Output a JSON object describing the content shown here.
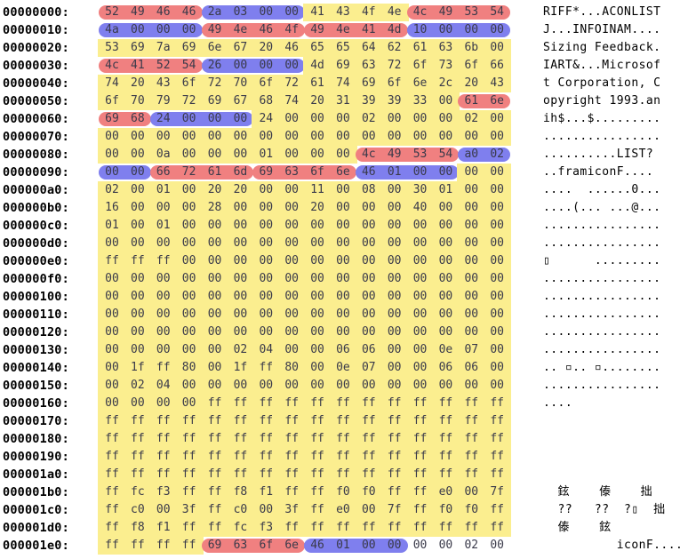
{
  "rows": [
    {
      "offset": "00000000:",
      "bytes": [
        "52",
        "49",
        "46",
        "46",
        "2a",
        "03",
        "00",
        "00",
        "41",
        "43",
        "4f",
        "4e",
        "4c",
        "49",
        "53",
        "54"
      ],
      "ascii": "RIFF*...ACONLIST"
    },
    {
      "offset": "00000010:",
      "bytes": [
        "4a",
        "00",
        "00",
        "00",
        "49",
        "4e",
        "46",
        "4f",
        "49",
        "4e",
        "41",
        "4d",
        "10",
        "00",
        "00",
        "00"
      ],
      "ascii": "J...INFOINAM...."
    },
    {
      "offset": "00000020:",
      "bytes": [
        "53",
        "69",
        "7a",
        "69",
        "6e",
        "67",
        "20",
        "46",
        "65",
        "65",
        "64",
        "62",
        "61",
        "63",
        "6b",
        "00"
      ],
      "ascii": "Sizing Feedback."
    },
    {
      "offset": "00000030:",
      "bytes": [
        "4c",
        "41",
        "52",
        "54",
        "26",
        "00",
        "00",
        "00",
        "4d",
        "69",
        "63",
        "72",
        "6f",
        "73",
        "6f",
        "66"
      ],
      "ascii": "IART&...Microsof"
    },
    {
      "offset": "00000040:",
      "bytes": [
        "74",
        "20",
        "43",
        "6f",
        "72",
        "70",
        "6f",
        "72",
        "61",
        "74",
        "69",
        "6f",
        "6e",
        "2c",
        "20",
        "43"
      ],
      "ascii": "t Corporation, C"
    },
    {
      "offset": "00000050:",
      "bytes": [
        "6f",
        "70",
        "79",
        "72",
        "69",
        "67",
        "68",
        "74",
        "20",
        "31",
        "39",
        "39",
        "33",
        "00",
        "61",
        "6e"
      ],
      "ascii": "opyright 1993.an"
    },
    {
      "offset": "00000060:",
      "bytes": [
        "69",
        "68",
        "24",
        "00",
        "00",
        "00",
        "24",
        "00",
        "00",
        "00",
        "02",
        "00",
        "00",
        "00",
        "02",
        "00"
      ],
      "ascii": "ih$...$........."
    },
    {
      "offset": "00000070:",
      "bytes": [
        "00",
        "00",
        "00",
        "00",
        "00",
        "00",
        "00",
        "00",
        "00",
        "00",
        "00",
        "00",
        "00",
        "00",
        "00",
        "00"
      ],
      "ascii": "................"
    },
    {
      "offset": "00000080:",
      "bytes": [
        "00",
        "00",
        "0a",
        "00",
        "00",
        "00",
        "01",
        "00",
        "00",
        "00",
        "4c",
        "49",
        "53",
        "54",
        "a0",
        "02"
      ],
      "ascii": "..........LIST?"
    },
    {
      "offset": "00000090:",
      "bytes": [
        "00",
        "00",
        "66",
        "72",
        "61",
        "6d",
        "69",
        "63",
        "6f",
        "6e",
        "46",
        "01",
        "00",
        "00",
        "00",
        "00"
      ],
      "ascii": "..framiconF...."
    },
    {
      "offset": "000000a0:",
      "bytes": [
        "02",
        "00",
        "01",
        "00",
        "20",
        "20",
        "00",
        "00",
        "11",
        "00",
        "08",
        "00",
        "30",
        "01",
        "00",
        "00"
      ],
      "ascii": "....  ......0..."
    },
    {
      "offset": "000000b0:",
      "bytes": [
        "16",
        "00",
        "00",
        "00",
        "28",
        "00",
        "00",
        "00",
        "20",
        "00",
        "00",
        "00",
        "40",
        "00",
        "00",
        "00"
      ],
      "ascii": "....(... ...@..."
    },
    {
      "offset": "000000c0:",
      "bytes": [
        "01",
        "00",
        "01",
        "00",
        "00",
        "00",
        "00",
        "00",
        "00",
        "00",
        "00",
        "00",
        "00",
        "00",
        "00",
        "00"
      ],
      "ascii": "................"
    },
    {
      "offset": "000000d0:",
      "bytes": [
        "00",
        "00",
        "00",
        "00",
        "00",
        "00",
        "00",
        "00",
        "00",
        "00",
        "00",
        "00",
        "00",
        "00",
        "00",
        "00"
      ],
      "ascii": "................"
    },
    {
      "offset": "000000e0:",
      "bytes": [
        "ff",
        "ff",
        "ff",
        "00",
        "00",
        "00",
        "00",
        "00",
        "00",
        "00",
        "00",
        "00",
        "00",
        "00",
        "00",
        "00"
      ],
      "ascii": "▯      ........."
    },
    {
      "offset": "000000f0:",
      "bytes": [
        "00",
        "00",
        "00",
        "00",
        "00",
        "00",
        "00",
        "00",
        "00",
        "00",
        "00",
        "00",
        "00",
        "00",
        "00",
        "00"
      ],
      "ascii": "................"
    },
    {
      "offset": "00000100:",
      "bytes": [
        "00",
        "00",
        "00",
        "00",
        "00",
        "00",
        "00",
        "00",
        "00",
        "00",
        "00",
        "00",
        "00",
        "00",
        "00",
        "00"
      ],
      "ascii": "................"
    },
    {
      "offset": "00000110:",
      "bytes": [
        "00",
        "00",
        "00",
        "00",
        "00",
        "00",
        "00",
        "00",
        "00",
        "00",
        "00",
        "00",
        "00",
        "00",
        "00",
        "00"
      ],
      "ascii": "................"
    },
    {
      "offset": "00000120:",
      "bytes": [
        "00",
        "00",
        "00",
        "00",
        "00",
        "00",
        "00",
        "00",
        "00",
        "00",
        "00",
        "00",
        "00",
        "00",
        "00",
        "00"
      ],
      "ascii": "................"
    },
    {
      "offset": "00000130:",
      "bytes": [
        "00",
        "00",
        "00",
        "00",
        "00",
        "02",
        "04",
        "00",
        "00",
        "06",
        "06",
        "00",
        "00",
        "0e",
        "07",
        "00"
      ],
      "ascii": "................"
    },
    {
      "offset": "00000140:",
      "bytes": [
        "00",
        "1f",
        "ff",
        "80",
        "00",
        "1f",
        "ff",
        "80",
        "00",
        "0e",
        "07",
        "00",
        "00",
        "06",
        "06",
        "00"
      ],
      "ascii": ".. ▫.. ▫........"
    },
    {
      "offset": "00000150:",
      "bytes": [
        "00",
        "02",
        "04",
        "00",
        "00",
        "00",
        "00",
        "00",
        "00",
        "00",
        "00",
        "00",
        "00",
        "00",
        "00",
        "00"
      ],
      "ascii": "................"
    },
    {
      "offset": "00000160:",
      "bytes": [
        "00",
        "00",
        "00",
        "00",
        "ff",
        "ff",
        "ff",
        "ff",
        "ff",
        "ff",
        "ff",
        "ff",
        "ff",
        "ff",
        "ff",
        "ff"
      ],
      "ascii": "...."
    },
    {
      "offset": "00000170:",
      "bytes": [
        "ff",
        "ff",
        "ff",
        "ff",
        "ff",
        "ff",
        "ff",
        "ff",
        "ff",
        "ff",
        "ff",
        "ff",
        "ff",
        "ff",
        "ff",
        "ff"
      ],
      "ascii": ""
    },
    {
      "offset": "00000180:",
      "bytes": [
        "ff",
        "ff",
        "ff",
        "ff",
        "ff",
        "ff",
        "ff",
        "ff",
        "ff",
        "ff",
        "ff",
        "ff",
        "ff",
        "ff",
        "ff",
        "ff"
      ],
      "ascii": ""
    },
    {
      "offset": "00000190:",
      "bytes": [
        "ff",
        "ff",
        "ff",
        "ff",
        "ff",
        "ff",
        "ff",
        "ff",
        "ff",
        "ff",
        "ff",
        "ff",
        "ff",
        "ff",
        "ff",
        "ff"
      ],
      "ascii": ""
    },
    {
      "offset": "000001a0:",
      "bytes": [
        "ff",
        "ff",
        "ff",
        "ff",
        "ff",
        "ff",
        "ff",
        "ff",
        "ff",
        "ff",
        "ff",
        "ff",
        "ff",
        "ff",
        "ff",
        "ff"
      ],
      "ascii": ""
    },
    {
      "offset": "000001b0:",
      "bytes": [
        "ff",
        "fc",
        "f3",
        "ff",
        "ff",
        "f8",
        "f1",
        "ff",
        "ff",
        "f0",
        "f0",
        "ff",
        "ff",
        "e0",
        "00",
        "7f"
      ],
      "ascii": "  鉉    傣    拙"
    },
    {
      "offset": "000001c0:",
      "bytes": [
        "ff",
        "c0",
        "00",
        "3f",
        "ff",
        "c0",
        "00",
        "3f",
        "ff",
        "e0",
        "00",
        "7f",
        "ff",
        "f0",
        "f0",
        "ff"
      ],
      "ascii": "  ??   ??  ?▯  拙"
    },
    {
      "offset": "000001d0:",
      "bytes": [
        "ff",
        "f8",
        "f1",
        "ff",
        "ff",
        "fc",
        "f3",
        "ff",
        "ff",
        "ff",
        "ff",
        "ff",
        "ff",
        "ff",
        "ff",
        "ff"
      ],
      "ascii": "  傣    鉉"
    },
    {
      "offset": "000001e0:",
      "bytes": [
        "ff",
        "ff",
        "ff",
        "ff",
        "69",
        "63",
        "6f",
        "6e",
        "46",
        "01",
        "00",
        "00",
        "00",
        "00",
        "02",
        "00"
      ],
      "ascii": "          iconF...."
    }
  ],
  "highlights": [
    {
      "row": 0,
      "from": 0,
      "to": 3,
      "color": "red"
    },
    {
      "row": 0,
      "from": 4,
      "to": 7,
      "color": "blue"
    },
    {
      "row": 0,
      "from": 8,
      "to": 11,
      "color": "yellow"
    },
    {
      "row": 0,
      "from": 12,
      "to": 15,
      "color": "red"
    },
    {
      "row": 1,
      "from": 0,
      "to": 3,
      "color": "blue"
    },
    {
      "row": 1,
      "from": 4,
      "to": 7,
      "color": "red"
    },
    {
      "row": 1,
      "from": 8,
      "to": 11,
      "color": "red"
    },
    {
      "row": 1,
      "from": 12,
      "to": 15,
      "color": "blue"
    },
    {
      "row": 2,
      "from": 0,
      "to": 15,
      "color": "yellow"
    },
    {
      "row": 3,
      "from": 0,
      "to": 3,
      "color": "red"
    },
    {
      "row": 3,
      "from": 4,
      "to": 7,
      "color": "blue"
    },
    {
      "row": 3,
      "from": 8,
      "to": 15,
      "color": "yellow"
    },
    {
      "row": 4,
      "from": 0,
      "to": 15,
      "color": "yellow"
    },
    {
      "row": 5,
      "from": 0,
      "to": 13,
      "color": "yellow"
    },
    {
      "row": 5,
      "from": 14,
      "to": 15,
      "color": "red"
    },
    {
      "row": 6,
      "from": 0,
      "to": 1,
      "color": "red"
    },
    {
      "row": 6,
      "from": 2,
      "to": 5,
      "color": "blue"
    },
    {
      "row": 6,
      "from": 6,
      "to": 15,
      "color": "yellow"
    },
    {
      "row": 7,
      "from": 0,
      "to": 15,
      "color": "yellow"
    },
    {
      "row": 8,
      "from": 0,
      "to": 9,
      "color": "yellow"
    },
    {
      "row": 8,
      "from": 10,
      "to": 13,
      "color": "red"
    },
    {
      "row": 8,
      "from": 14,
      "to": 15,
      "color": "blue"
    },
    {
      "row": 9,
      "from": 0,
      "to": 1,
      "color": "blue"
    },
    {
      "row": 9,
      "from": 2,
      "to": 5,
      "color": "red"
    },
    {
      "row": 9,
      "from": 6,
      "to": 9,
      "color": "red"
    },
    {
      "row": 9,
      "from": 10,
      "to": 13,
      "color": "blue"
    },
    {
      "row": 9,
      "from": 14,
      "to": 15,
      "color": "yellow"
    },
    {
      "row": 10,
      "from": 0,
      "to": 15,
      "color": "yellow"
    },
    {
      "row": 11,
      "from": 0,
      "to": 15,
      "color": "yellow"
    },
    {
      "row": 12,
      "from": 0,
      "to": 15,
      "color": "yellow"
    },
    {
      "row": 13,
      "from": 0,
      "to": 15,
      "color": "yellow"
    },
    {
      "row": 14,
      "from": 0,
      "to": 15,
      "color": "yellow"
    },
    {
      "row": 15,
      "from": 0,
      "to": 15,
      "color": "yellow"
    },
    {
      "row": 16,
      "from": 0,
      "to": 15,
      "color": "yellow"
    },
    {
      "row": 17,
      "from": 0,
      "to": 15,
      "color": "yellow"
    },
    {
      "row": 18,
      "from": 0,
      "to": 15,
      "color": "yellow"
    },
    {
      "row": 19,
      "from": 0,
      "to": 15,
      "color": "yellow"
    },
    {
      "row": 20,
      "from": 0,
      "to": 15,
      "color": "yellow"
    },
    {
      "row": 21,
      "from": 0,
      "to": 15,
      "color": "yellow"
    },
    {
      "row": 22,
      "from": 0,
      "to": 15,
      "color": "yellow"
    },
    {
      "row": 23,
      "from": 0,
      "to": 15,
      "color": "yellow"
    },
    {
      "row": 24,
      "from": 0,
      "to": 15,
      "color": "yellow"
    },
    {
      "row": 25,
      "from": 0,
      "to": 15,
      "color": "yellow"
    },
    {
      "row": 26,
      "from": 0,
      "to": 15,
      "color": "yellow"
    },
    {
      "row": 27,
      "from": 0,
      "to": 15,
      "color": "yellow"
    },
    {
      "row": 28,
      "from": 0,
      "to": 15,
      "color": "yellow"
    },
    {
      "row": 29,
      "from": 0,
      "to": 15,
      "color": "yellow"
    },
    {
      "row": 30,
      "from": 0,
      "to": 3,
      "color": "yellow"
    },
    {
      "row": 30,
      "from": 4,
      "to": 7,
      "color": "red"
    },
    {
      "row": 30,
      "from": 8,
      "to": 11,
      "color": "blue"
    }
  ],
  "colors": {
    "yellow": "#fbee8f",
    "red": "#f08080",
    "blue": "#7f7fee",
    "text": "#3a3a4a"
  }
}
